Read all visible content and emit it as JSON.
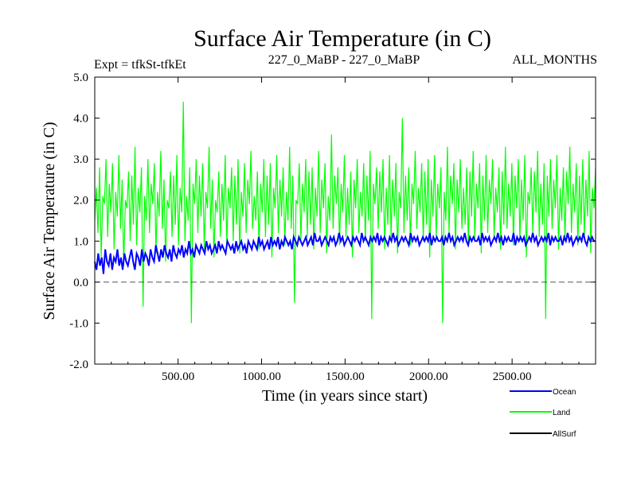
{
  "header": {
    "title": "Surface Air Temperature (in C)",
    "expt_label": "Expt = tfkSt-tfkEt",
    "comparison_label": "227_0_MaBP - 227_0_MaBP",
    "months_label": "ALL_MONTHS"
  },
  "colors": {
    "ocean": "#0000ff",
    "land": "#00ff00",
    "allsurf": "#000000",
    "zero_line": "#555555",
    "axis": "#000000"
  },
  "chart_data": {
    "type": "line",
    "title": "Surface Air Temperature (in C)",
    "xlabel": "Time (in years since start)",
    "ylabel": "Surface Air Temperature (in C)",
    "xlim": [
      1,
      3000
    ],
    "ylim": [
      -2.0,
      5.0
    ],
    "x_ticks": [
      500,
      1000,
      1500,
      2000,
      2500
    ],
    "x_tick_labels": [
      "500.00",
      "1000.00",
      "1500.00",
      "2000.00",
      "2500.00"
    ],
    "y_ticks": [
      -2,
      -1,
      0,
      1,
      2,
      3,
      4,
      5
    ],
    "y_tick_labels": [
      "-2.0",
      "-1.0",
      "0.0",
      "1.0",
      "2.0",
      "3.0",
      "4.0",
      "5.0"
    ],
    "reference_line": 0.0,
    "x_step": 10,
    "series": [
      {
        "name": "Land",
        "values": [
          1.5,
          2.3,
          1.2,
          2.8,
          0.6,
          2.1,
          1.9,
          3.0,
          1.1,
          2.4,
          1.7,
          2.9,
          0.8,
          2.2,
          1.6,
          3.1,
          1.3,
          2.5,
          0.4,
          2.0,
          1.8,
          2.7,
          1.0,
          2.6,
          1.4,
          3.3,
          0.9,
          2.3,
          1.7,
          2.8,
          -0.6,
          2.1,
          1.5,
          3.0,
          1.2,
          2.4,
          1.9,
          2.9,
          0.7,
          2.2,
          1.6,
          3.2,
          1.3,
          2.5,
          0.5,
          2.0,
          1.8,
          2.7,
          1.1,
          2.6,
          1.4,
          3.1,
          0.9,
          2.3,
          1.7,
          4.4,
          1.0,
          2.1,
          1.5,
          2.8,
          -1.0,
          2.4,
          1.9,
          3.0,
          1.2,
          2.6,
          1.6,
          2.9,
          0.8,
          2.2,
          1.8,
          3.3,
          1.3,
          2.5,
          0.6,
          2.0,
          1.7,
          2.7,
          1.1,
          2.4,
          1.5,
          3.1,
          0.9,
          2.3,
          1.8,
          2.8,
          1.0,
          2.6,
          1.4,
          3.0,
          0.7,
          2.2,
          1.6,
          2.9,
          1.2,
          2.5,
          1.9,
          3.2,
          1.3,
          2.1,
          1.5,
          2.7,
          0.8,
          2.4,
          1.7,
          3.0,
          1.1,
          2.6,
          1.4,
          2.9,
          0.6,
          2.3,
          1.8,
          3.1,
          1.2,
          2.5,
          1.6,
          2.8,
          0.9,
          2.2,
          1.5,
          3.3,
          1.3,
          2.6,
          -0.5,
          2.0,
          1.9,
          2.9,
          1.0,
          2.4,
          1.7,
          3.0,
          1.1,
          2.7,
          1.4,
          2.8,
          0.8,
          2.3,
          1.6,
          3.2,
          1.2,
          2.5,
          1.8,
          2.9,
          0.7,
          2.1,
          1.5,
          3.6,
          1.3,
          2.6,
          1.9,
          2.8,
          0.9,
          2.4,
          1.7,
          3.1,
          1.1,
          2.3,
          1.4,
          2.7,
          0.6,
          2.5,
          1.8,
          3.0,
          1.2,
          2.2,
          1.6,
          2.9,
          1.0,
          2.6,
          1.5,
          3.2,
          -0.9,
          2.4,
          1.9,
          2.8,
          1.3,
          2.7,
          1.7,
          3.0,
          0.8,
          2.3,
          1.4,
          3.1,
          1.1,
          2.5,
          1.6,
          2.9,
          0.7,
          2.2,
          1.8,
          4.0,
          1.2,
          2.6,
          1.5,
          2.8,
          0.9,
          2.4,
          1.9,
          3.2,
          1.3,
          2.3,
          1.7,
          2.9,
          1.0,
          2.7,
          1.4,
          3.0,
          0.6,
          2.5,
          1.6,
          3.1,
          1.1,
          2.4,
          1.8,
          2.8,
          -1.0,
          2.2,
          1.5,
          3.3,
          1.2,
          2.6,
          1.9,
          2.9,
          0.8,
          2.5,
          1.7,
          3.0,
          1.3,
          2.3,
          1.4,
          2.8,
          0.9,
          2.7,
          1.6,
          3.2,
          1.0,
          2.4,
          1.8,
          2.9,
          0.7,
          2.6,
          1.5,
          3.1,
          1.2,
          2.5,
          1.9,
          3.0,
          1.1,
          2.3,
          1.7,
          2.8,
          0.8,
          2.7,
          1.4,
          3.3,
          1.3,
          2.4,
          1.6,
          2.9,
          0.9,
          2.6,
          1.8,
          3.0,
          1.0,
          2.5,
          1.5,
          3.1,
          0.6,
          2.2,
          1.9,
          2.8,
          1.2,
          2.7,
          1.7,
          3.2,
          1.1,
          2.4,
          1.4,
          2.9,
          -0.9,
          2.6,
          1.6,
          3.0,
          1.3,
          2.5,
          1.8,
          3.1,
          0.8,
          2.3,
          1.5,
          2.8,
          1.0,
          2.7,
          1.9,
          3.3,
          1.2,
          2.4,
          1.7,
          2.9,
          0.9,
          2.6,
          1.4,
          3.0,
          1.1,
          2.5,
          1.6,
          3.2,
          0.7,
          2.3,
          1.8,
          2.8
        ],
        "estimated_range": "min ≈ -1.1, max ≈ 4.7"
      },
      {
        "name": "Ocean",
        "values": [
          0.5,
          0.3,
          0.7,
          0.4,
          0.6,
          0.2,
          0.8,
          0.5,
          0.4,
          0.7,
          0.3,
          0.6,
          0.5,
          0.8,
          0.4,
          0.6,
          0.3,
          0.7,
          0.5,
          0.4,
          0.6,
          0.8,
          0.5,
          0.3,
          0.7,
          0.6,
          0.4,
          0.8,
          0.5,
          0.7,
          0.6,
          0.4,
          0.8,
          0.6,
          0.5,
          0.9,
          0.7,
          0.5,
          0.8,
          0.6,
          0.9,
          0.7,
          0.6,
          0.8,
          0.5,
          0.9,
          0.7,
          0.6,
          0.8,
          0.7,
          0.9,
          0.6,
          0.8,
          0.7,
          1.0,
          0.7,
          0.8,
          0.6,
          0.9,
          0.8,
          0.7,
          0.9,
          0.8,
          0.7,
          1.0,
          0.8,
          0.9,
          0.7,
          0.8,
          0.9,
          0.7,
          1.0,
          0.8,
          0.9,
          0.8,
          0.7,
          1.0,
          0.9,
          0.8,
          0.9,
          0.7,
          1.0,
          0.8,
          0.9,
          1.0,
          0.8,
          0.9,
          0.7,
          1.0,
          0.9,
          0.8,
          1.0,
          0.9,
          0.8,
          1.1,
          0.9,
          1.0,
          0.8,
          0.9,
          1.0,
          0.8,
          1.1,
          0.9,
          1.0,
          0.9,
          1.1,
          0.8,
          1.0,
          0.9,
          1.1,
          1.0,
          0.9,
          1.0,
          0.8,
          1.1,
          1.0,
          0.9,
          1.1,
          1.0,
          0.9,
          1.0,
          1.1,
          0.9,
          1.0,
          1.1,
          0.9,
          1.2,
          1.0,
          1.0,
          1.1,
          0.9,
          1.0,
          1.1,
          1.0,
          0.9,
          1.1,
          1.0,
          1.1,
          0.9,
          1.0,
          1.2,
          1.0,
          1.1,
          0.9,
          1.0,
          1.1,
          1.0,
          0.9,
          1.1,
          1.0,
          1.1,
          1.0,
          0.9,
          1.2,
          1.0,
          1.1,
          1.0,
          0.9,
          1.1,
          1.0,
          1.1,
          1.0,
          1.2,
          0.9,
          1.1,
          1.0,
          1.1,
          1.0,
          0.9,
          1.1,
          1.0,
          1.2,
          1.0,
          1.1,
          0.9,
          1.0,
          1.1,
          1.0,
          1.1,
          1.0,
          0.9,
          1.2,
          1.0,
          1.1,
          1.0,
          1.1,
          0.9,
          1.0,
          1.1,
          1.0,
          1.1,
          1.0,
          1.2,
          0.9,
          1.1,
          1.0,
          1.1,
          1.0,
          1.0,
          1.1,
          0.9,
          1.1,
          1.0,
          1.2,
          1.0,
          1.1,
          0.9,
          1.0,
          1.1,
          1.0,
          1.1,
          1.0,
          1.2,
          1.0,
          0.9,
          1.1,
          1.0,
          1.1,
          1.0,
          1.0,
          1.1,
          0.9,
          1.2,
          1.0,
          1.1,
          1.0,
          1.1,
          0.9,
          1.0,
          1.1,
          1.0,
          1.2,
          1.0,
          1.1,
          0.9,
          1.1,
          1.0,
          1.1,
          1.0,
          1.0,
          1.2,
          0.9,
          1.1,
          1.0,
          1.1,
          1.0,
          1.1,
          0.9,
          1.0,
          1.1,
          1.0,
          1.2,
          1.0,
          1.1,
          0.9,
          1.0,
          1.1,
          1.0,
          1.1,
          1.0,
          1.2,
          0.9,
          1.1,
          1.0,
          1.1,
          1.0,
          1.0,
          1.1,
          0.9,
          1.1,
          1.0,
          1.2,
          1.0,
          1.1,
          0.9,
          1.0,
          1.1,
          1.0,
          1.1,
          1.0,
          1.2,
          1.0,
          0.9,
          1.1,
          1.0,
          1.1,
          1.0,
          1.0
        ],
        "estimated_range": "min ≈ 0.1, max ≈ 1.5"
      },
      {
        "name": "AllSurf",
        "values": []
      }
    ],
    "legend": {
      "placement": "bottom-right",
      "entries": [
        "Ocean",
        "Land",
        "AllSurf"
      ]
    }
  }
}
